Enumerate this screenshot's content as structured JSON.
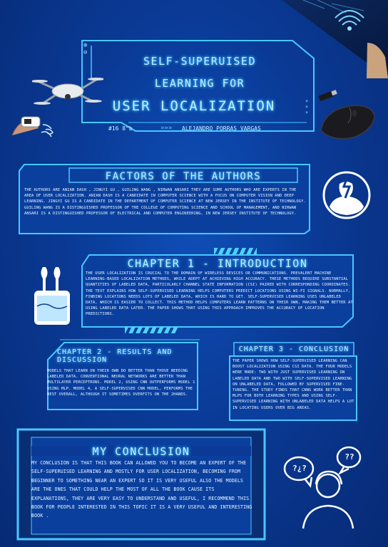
{
  "title": {
    "line1": "Self-superuised",
    "line2": "learning for",
    "line3": "user localization"
  },
  "meta": {
    "number": "#16 8\"b",
    "arrows": "»»»",
    "author": "Alejandro Porras Vargas"
  },
  "factors": {
    "heading": "Factors of the Authors",
    "text": "The authors are Anian Dash , Jingyi gu , Guiling Wang , Nirwan Ansari they are some authors who are experts in the area of user localization. Anian Dash is a candidate in computer science with a focus on computer vision and deep learning. Jingyi gu is a candidate in the department of computer science at New Jersey in the Institute of Technology. Guiling Wang is a distinguished professor of the college of computing science and school of management, and Nirwan Ansari is a distinguished professor of electrical and computer engineering, in New Jersey Institute of Technology."
  },
  "chapter1": {
    "heading": "Chapter 1 - Introduction",
    "text": "The user localization is crucial to the domain of wireless devices or communications. Prevalent machine learning-based localization methods, while adept at achieving high accuracy. These methods require substantial quantities of labeled data, particularly channel state information (CSI) paired with corresponding coordinates. The text explains how self-supervised learning helps computers predict locations using Wi-Fi signals. Normally, finding locations needs lots of labeled data, which is hard to get. Self-supervised learning uses unlabeled data, which is easier to collect. This method helps computers learn patterns on their own, making them better at using labeled data later. The paper shows that using this approach improves the accuracy of location predictions."
  },
  "chapter2": {
    "heading": "Chapter 2 - Results and Discussion",
    "text": "Models that learn on their own do better than those needing labeled data. Conventional neural networks are better than multilayer perceptrons. Model 2, using CNN outperforms model 1 using MLP. Model 4, a self-supervised CNN model, performs the best overall, although it sometimes overfits on the 2Hands."
  },
  "chapter3": {
    "heading": "Chapter 3 - Conclusion",
    "text": "The paper shows how self-supervised learning can boost localization using CSI data. The four models were made: two with just supervised learning on labeled data and two with self-supervised learning on unlabeled data, followed by supervised fine-tuning. The study finds that CNNs work better than MLPs for both learning types and using self-supervised learning with unlabeled data helps a lot in locating users over big areas."
  },
  "my_conclusion": {
    "heading": "My Conclusion",
    "text": "My conclusion is that this book can allowed you to become an expert of the self-superuised learning and mostly for user localization, becoming from beginner to something near an expert so it is very useful also the models are the ones that could help the most of all the book cause its explanations, they are very easy to understand and useful, I recommend this book for people interested in this topic it is a very useful and interesting book ."
  },
  "thinking_person": {
    "bubble_left": "?¿?",
    "bubble_right": "??"
  },
  "colors": {
    "accent": "#48c8ff",
    "background": "#0a3a96",
    "panel": "#0b3f9e"
  },
  "icons": [
    "drone-icon",
    "remote-controller-icon",
    "usb-drive-icon",
    "computer-mouse-icon",
    "electrician-icon",
    "earbuds-icon",
    "thinking-person-icon",
    "wifi-hand-icon"
  ]
}
